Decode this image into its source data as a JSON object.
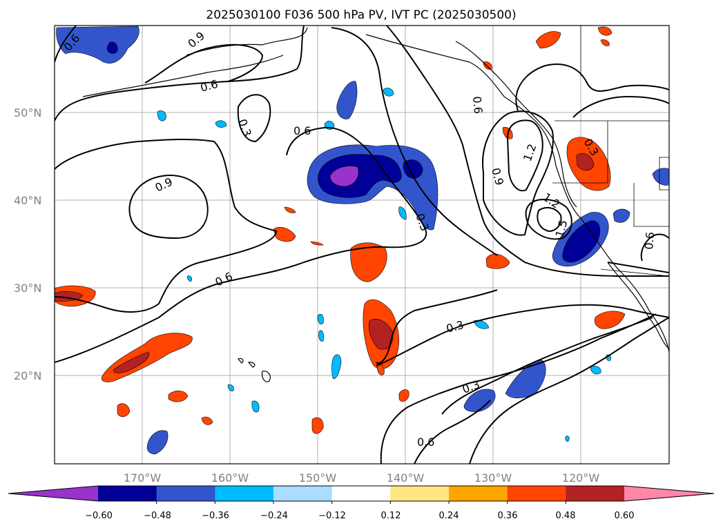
{
  "title": "2025030100 F036 500 hPa PV, IVT PC (2025030500)",
  "lat_labels": [
    "50°N",
    "40°N",
    "30°N",
    "20°N"
  ],
  "lon_labels": [
    "170°W",
    "160°W",
    "150°W",
    "140°W",
    "130°W",
    "120°W"
  ],
  "colorbar": {
    "tick_labels": [
      "−0.60",
      "−0.48",
      "−0.36",
      "−0.24",
      "−0.12",
      "0.12",
      "0.24",
      "0.36",
      "0.48",
      "0.60"
    ],
    "colors": [
      "#9933cc",
      "#000099",
      "#3355cc",
      "#00bbff",
      "#aaddff",
      "#ffffff",
      "#ffe680",
      "#ffa500",
      "#ff4500",
      "#b22222",
      "#ff88aa"
    ]
  },
  "contour_labels": [
    "0.6",
    "0.9",
    "0.6",
    "0.3",
    "0.6",
    "0.9",
    "0.6",
    "0.3",
    "0.6",
    "0.9",
    "1.2",
    "1.2",
    "1.5",
    "0.3",
    "0.6",
    "0.3",
    "0.3",
    "0.6"
  ],
  "colors": {
    "negative_fill": "#3355cc",
    "negative_deep": "#000099",
    "negative_min": "#9933cc",
    "positive_fill": "#ff4500",
    "positive_deep": "#b22222",
    "grid": "#b0b0b0"
  }
}
